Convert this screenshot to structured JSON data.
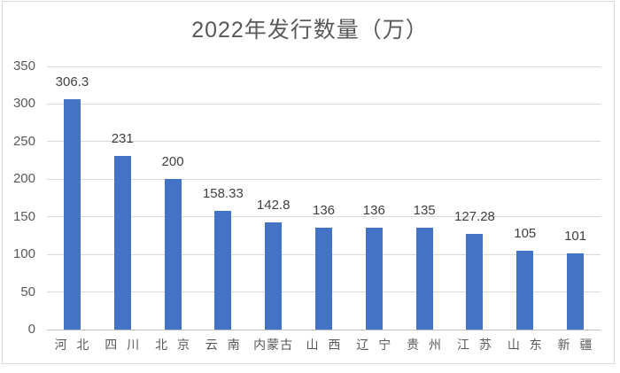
{
  "chart_data": {
    "type": "bar",
    "title": "2022年发行数量（万）",
    "categories": [
      "河 北",
      "四 川",
      "北 京",
      "云 南",
      "内蒙古",
      "山 西",
      "辽 宁",
      "贵 州",
      "江 苏",
      "山 东",
      "新 疆"
    ],
    "values": [
      306.3,
      231,
      200,
      158.33,
      142.8,
      136,
      136,
      135,
      127.28,
      105,
      101
    ],
    "data_labels": [
      "306.3",
      "231",
      "200",
      "158.33",
      "142.8",
      "136",
      "136",
      "135",
      "127.28",
      "105",
      "101"
    ],
    "ylim": [
      0,
      350
    ],
    "y_ticks": [
      0,
      50,
      100,
      150,
      200,
      250,
      300,
      350
    ],
    "grid": true,
    "legend_position": "none",
    "show_data_labels": true,
    "colors": {
      "bar": "#4472c4",
      "gridline": "#d9d9d9",
      "axis_line": "#bfbfbf",
      "title": "#595959",
      "axis_labels": "#595959",
      "data_labels": "#404040",
      "background": "#ffffff",
      "frame_border": "#d9d9d9"
    }
  }
}
